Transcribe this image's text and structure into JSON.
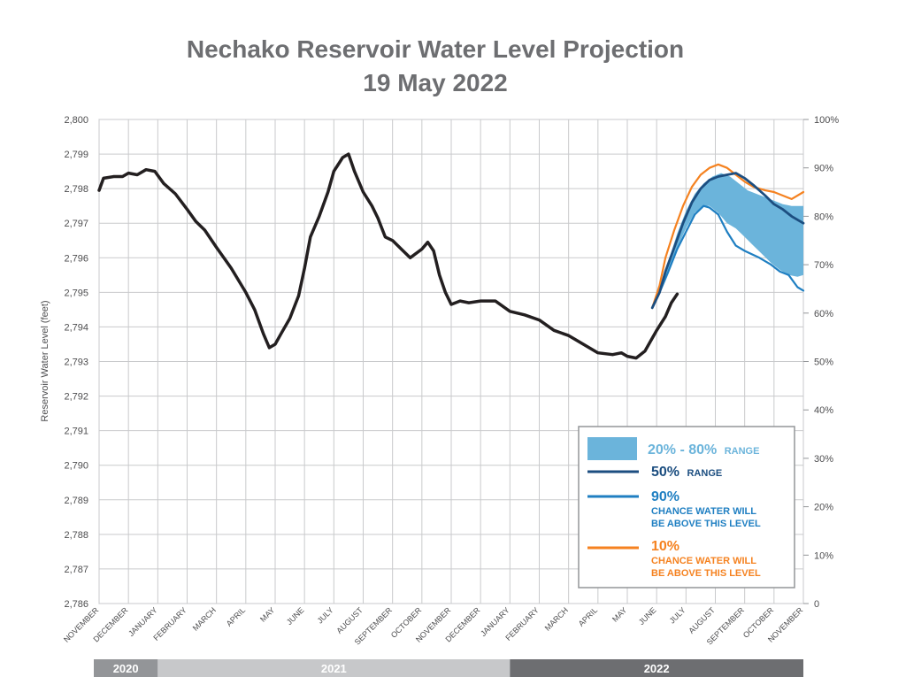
{
  "chart_data": {
    "type": "line",
    "title": "Nechako Reservoir Water Level Projection",
    "subtitle": "19 May 2022",
    "ylabel": "Reservoir Water Level (feet)",
    "ylim": [
      2786,
      2800
    ],
    "y_ticks": [
      "2,800",
      "2,799",
      "2,798",
      "2,797",
      "2,796",
      "2,795",
      "2,794",
      "2,793",
      "2,792",
      "2,791",
      "2,790",
      "2,789",
      "2,788",
      "2,787",
      "2,786"
    ],
    "y2_ticks": [
      "100%",
      "90%",
      "80%",
      "70%",
      "60%",
      "50%",
      "40%",
      "30%",
      "20%",
      "10%",
      "0"
    ],
    "months": [
      "NOVEMBER",
      "DECEMBER",
      "JANUARY",
      "FEBRUARY",
      "MARCH",
      "APRIL",
      "MAY",
      "JUNE",
      "JULY",
      "AUGUST",
      "SEPTEMBER",
      "OCTOBER",
      "NOVEMBER",
      "DECEMBER",
      "JANUARY",
      "FEBRUARY",
      "MARCH",
      "APRIL",
      "MAY",
      "JUNE",
      "JULY",
      "AUGUST",
      "SEPTEMBER",
      "OCTOBER",
      "NOVEMBER"
    ],
    "years": [
      {
        "label": "2020",
        "start": 0,
        "end": 2,
        "color": "#939598"
      },
      {
        "label": "2021",
        "start": 2,
        "end": 14,
        "color": "#c7c8ca"
      },
      {
        "label": "2022",
        "start": 14,
        "end": 24,
        "color": "#6d6e71"
      }
    ],
    "grid": true,
    "legend_position": "bottom-right",
    "series": [
      {
        "key": "observed",
        "color": "#231f20",
        "points": [
          [
            0,
            2797.95
          ],
          [
            0.15,
            2798.3
          ],
          [
            0.5,
            2798.35
          ],
          [
            0.8,
            2798.35
          ],
          [
            1.0,
            2798.45
          ],
          [
            1.3,
            2798.4
          ],
          [
            1.6,
            2798.55
          ],
          [
            1.9,
            2798.5
          ],
          [
            2.2,
            2798.15
          ],
          [
            2.6,
            2797.85
          ],
          [
            3.0,
            2797.4
          ],
          [
            3.3,
            2797.05
          ],
          [
            3.6,
            2796.8
          ],
          [
            4.0,
            2796.3
          ],
          [
            4.5,
            2795.7
          ],
          [
            5.0,
            2795.0
          ],
          [
            5.3,
            2794.5
          ],
          [
            5.6,
            2793.8
          ],
          [
            5.8,
            2793.4
          ],
          [
            6.0,
            2793.5
          ],
          [
            6.2,
            2793.8
          ],
          [
            6.5,
            2794.25
          ],
          [
            6.8,
            2794.9
          ],
          [
            7.0,
            2795.7
          ],
          [
            7.2,
            2796.6
          ],
          [
            7.5,
            2797.2
          ],
          [
            7.8,
            2797.9
          ],
          [
            8.0,
            2798.5
          ],
          [
            8.3,
            2798.9
          ],
          [
            8.5,
            2799.0
          ],
          [
            8.7,
            2798.5
          ],
          [
            9.0,
            2797.9
          ],
          [
            9.3,
            2797.5
          ],
          [
            9.5,
            2797.15
          ],
          [
            9.75,
            2796.6
          ],
          [
            10.0,
            2796.5
          ],
          [
            10.3,
            2796.25
          ],
          [
            10.6,
            2796.0
          ],
          [
            11.0,
            2796.25
          ],
          [
            11.2,
            2796.45
          ],
          [
            11.4,
            2796.2
          ],
          [
            11.6,
            2795.5
          ],
          [
            11.8,
            2795.0
          ],
          [
            12.0,
            2794.65
          ],
          [
            12.3,
            2794.75
          ],
          [
            12.6,
            2794.7
          ],
          [
            13.0,
            2794.75
          ],
          [
            13.5,
            2794.75
          ],
          [
            14.0,
            2794.45
          ],
          [
            14.5,
            2794.35
          ],
          [
            15.0,
            2794.2
          ],
          [
            15.5,
            2793.9
          ],
          [
            16.0,
            2793.75
          ],
          [
            16.5,
            2793.5
          ],
          [
            17.0,
            2793.25
          ],
          [
            17.5,
            2793.2
          ],
          [
            17.8,
            2793.25
          ],
          [
            18.0,
            2793.15
          ],
          [
            18.3,
            2793.1
          ],
          [
            18.6,
            2793.3
          ],
          [
            19.0,
            2793.9
          ],
          [
            19.3,
            2794.3
          ],
          [
            19.5,
            2794.7
          ],
          [
            19.7,
            2794.95
          ]
        ]
      },
      {
        "key": "p50",
        "color": "#1c4e80",
        "points": [
          [
            18.85,
            2794.55
          ],
          [
            19.1,
            2795.0
          ],
          [
            19.3,
            2795.6
          ],
          [
            19.6,
            2796.3
          ],
          [
            19.9,
            2797.0
          ],
          [
            20.2,
            2797.6
          ],
          [
            20.5,
            2798.0
          ],
          [
            20.8,
            2798.25
          ],
          [
            21.1,
            2798.35
          ],
          [
            21.4,
            2798.4
          ],
          [
            21.7,
            2798.45
          ],
          [
            22.0,
            2798.3
          ],
          [
            22.3,
            2798.1
          ],
          [
            22.7,
            2797.8
          ],
          [
            23.0,
            2797.55
          ],
          [
            23.3,
            2797.4
          ],
          [
            23.6,
            2797.2
          ],
          [
            23.9,
            2797.05
          ],
          [
            24.0,
            2797.0
          ]
        ]
      },
      {
        "key": "p90",
        "color": "#1f7fc2",
        "points": [
          [
            18.85,
            2794.55
          ],
          [
            19.1,
            2795.0
          ],
          [
            19.4,
            2795.6
          ],
          [
            19.7,
            2796.25
          ],
          [
            20.0,
            2796.75
          ],
          [
            20.3,
            2797.25
          ],
          [
            20.6,
            2797.5
          ],
          [
            20.8,
            2797.45
          ],
          [
            21.1,
            2797.25
          ],
          [
            21.4,
            2796.75
          ],
          [
            21.7,
            2796.35
          ],
          [
            22.0,
            2796.2
          ],
          [
            22.5,
            2796.0
          ],
          [
            22.9,
            2795.8
          ],
          [
            23.2,
            2795.6
          ],
          [
            23.5,
            2795.5
          ],
          [
            23.8,
            2795.15
          ],
          [
            24.0,
            2795.05
          ]
        ]
      },
      {
        "key": "p10",
        "color": "#f58220",
        "points": [
          [
            18.85,
            2794.55
          ],
          [
            19.1,
            2795.2
          ],
          [
            19.3,
            2796.0
          ],
          [
            19.6,
            2796.8
          ],
          [
            19.9,
            2797.5
          ],
          [
            20.2,
            2798.05
          ],
          [
            20.5,
            2798.4
          ],
          [
            20.8,
            2798.6
          ],
          [
            21.1,
            2798.7
          ],
          [
            21.4,
            2798.6
          ],
          [
            21.7,
            2798.4
          ],
          [
            22.0,
            2798.2
          ],
          [
            22.3,
            2798.05
          ],
          [
            22.7,
            2797.95
          ],
          [
            23.0,
            2797.9
          ],
          [
            23.3,
            2797.8
          ],
          [
            23.6,
            2797.7
          ],
          [
            23.9,
            2797.85
          ],
          [
            24.0,
            2797.9
          ]
        ]
      }
    ],
    "band": {
      "key": "p20_80",
      "color": "#6bb4db",
      "upper": [
        [
          18.85,
          2794.55
        ],
        [
          19.1,
          2795.1
        ],
        [
          19.4,
          2795.9
        ],
        [
          19.7,
          2796.7
        ],
        [
          20.0,
          2797.35
        ],
        [
          20.3,
          2797.85
        ],
        [
          20.6,
          2798.15
        ],
        [
          20.9,
          2798.35
        ],
        [
          21.2,
          2798.45
        ],
        [
          21.5,
          2798.35
        ],
        [
          21.8,
          2798.15
        ],
        [
          22.1,
          2797.95
        ],
        [
          22.4,
          2797.85
        ],
        [
          22.7,
          2797.75
        ],
        [
          23.0,
          2797.65
        ],
        [
          23.3,
          2797.55
        ],
        [
          23.6,
          2797.5
        ],
        [
          24.0,
          2797.5
        ]
      ],
      "lower": [
        [
          18.85,
          2794.55
        ],
        [
          19.1,
          2795.0
        ],
        [
          19.4,
          2795.65
        ],
        [
          19.7,
          2796.3
        ],
        [
          20.0,
          2796.85
        ],
        [
          20.3,
          2797.3
        ],
        [
          20.6,
          2797.5
        ],
        [
          20.8,
          2797.5
        ],
        [
          21.1,
          2797.3
        ],
        [
          21.4,
          2797.0
        ],
        [
          21.7,
          2796.85
        ],
        [
          22.0,
          2796.6
        ],
        [
          22.3,
          2796.35
        ],
        [
          22.6,
          2796.1
        ],
        [
          22.9,
          2795.85
        ],
        [
          23.2,
          2795.65
        ],
        [
          23.5,
          2795.5
        ],
        [
          23.8,
          2795.45
        ],
        [
          24.0,
          2795.5
        ]
      ]
    }
  },
  "legend": {
    "band": {
      "big": "20% - 80%",
      "small": "RANGE"
    },
    "p50": {
      "big": "50%",
      "small": "RANGE"
    },
    "p90": {
      "big": "90%",
      "line1": "CHANCE WATER WILL",
      "line2": "BE ABOVE THIS LEVEL"
    },
    "p10": {
      "big": "10%",
      "line1": "CHANCE WATER WILL",
      "line2": "BE ABOVE THIS LEVEL"
    }
  }
}
